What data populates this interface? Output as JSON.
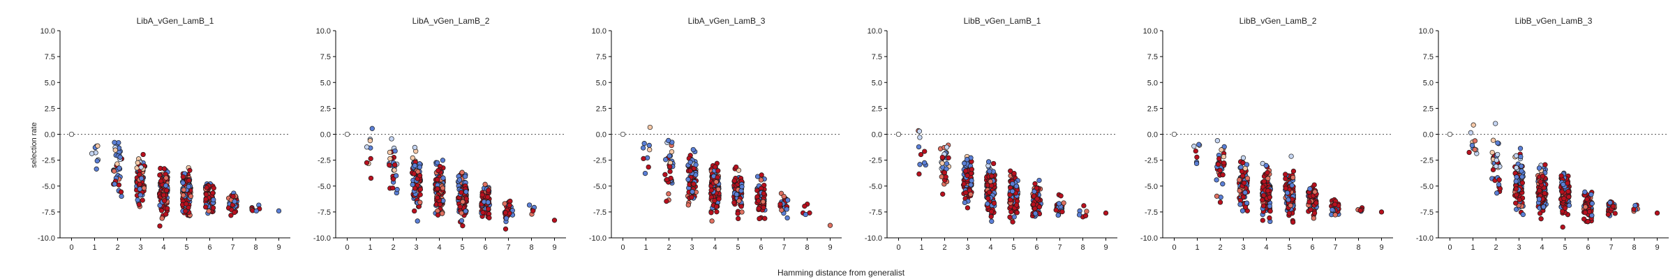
{
  "figure": {
    "xlabel": "Hamming distance from generalist",
    "ylabel": "selection rate"
  },
  "colors": {
    "low": "#c5d5f2",
    "mid_blue": "#5b7fd6",
    "deep_red": "#b8101e",
    "mid_red": "#e07060",
    "pale": "#f6c9a8"
  },
  "chart_data": [
    {
      "type": "scatter",
      "title": "LibA_vGen_LamB_1",
      "xticks": [
        "0",
        "1",
        "2",
        "3",
        "4",
        "5",
        "6",
        "7",
        "8",
        "9"
      ],
      "yticks": [
        "10.0",
        "7.5",
        "5.0",
        "2.5",
        "0.0",
        "-2.5",
        "-5.0",
        "-7.5",
        "-10.0"
      ],
      "xlim": [
        -0.5,
        9.5
      ],
      "ylim": [
        -10,
        10
      ],
      "grid": false,
      "zero_line": true,
      "groups": [
        {
          "x": 0,
          "n": 1,
          "center": 0.0,
          "spread": 0.1,
          "min": -0.1,
          "max": 0.1
        },
        {
          "x": 1,
          "n": 8,
          "center": -1.5,
          "spread": 1.5,
          "min": -4.0,
          "max": 1.8
        },
        {
          "x": 2,
          "n": 35,
          "center": -3.0,
          "spread": 2.5,
          "min": -8.5,
          "max": 1.6
        },
        {
          "x": 3,
          "n": 70,
          "center": -4.5,
          "spread": 2.0,
          "min": -8.0,
          "max": 1.5
        },
        {
          "x": 4,
          "n": 110,
          "center": -5.5,
          "spread": 1.8,
          "min": -9.0,
          "max": -0.8
        },
        {
          "x": 5,
          "n": 105,
          "center": -5.8,
          "spread": 1.6,
          "min": -8.8,
          "max": -0.8
        },
        {
          "x": 6,
          "n": 70,
          "center": -6.2,
          "spread": 1.3,
          "min": -8.8,
          "max": -2.0
        },
        {
          "x": 7,
          "n": 30,
          "center": -6.8,
          "spread": 0.9,
          "min": -8.5,
          "max": -5.0
        },
        {
          "x": 8,
          "n": 8,
          "center": -7.0,
          "spread": 0.8,
          "min": -8.0,
          "max": -5.8
        },
        {
          "x": 9,
          "n": 1,
          "center": -7.4,
          "spread": 0.1,
          "min": -7.5,
          "max": -7.3
        }
      ]
    },
    {
      "type": "scatter",
      "title": "LibA_vGen_LamB_2",
      "xticks": [
        "0",
        "1",
        "2",
        "3",
        "4",
        "5",
        "6",
        "7",
        "8",
        "9"
      ],
      "yticks": [
        "10.0",
        "7.5",
        "5.0",
        "2.5",
        "0.0",
        "-2.5",
        "-5.0",
        "-7.5",
        "-10.0"
      ],
      "xlim": [
        -0.5,
        9.5
      ],
      "ylim": [
        -10,
        10
      ],
      "grid": false,
      "zero_line": true,
      "groups": [
        {
          "x": 0,
          "n": 1,
          "center": 0.0,
          "spread": 0.1,
          "min": -0.1,
          "max": 0.1
        },
        {
          "x": 1,
          "n": 9,
          "center": -1.8,
          "spread": 1.6,
          "min": -4.5,
          "max": 1.8
        },
        {
          "x": 2,
          "n": 30,
          "center": -3.2,
          "spread": 2.4,
          "min": -8.0,
          "max": 1.6
        },
        {
          "x": 3,
          "n": 80,
          "center": -4.5,
          "spread": 2.0,
          "min": -8.5,
          "max": 1.6
        },
        {
          "x": 4,
          "n": 120,
          "center": -5.5,
          "spread": 1.8,
          "min": -9.5,
          "max": -0.8
        },
        {
          "x": 5,
          "n": 100,
          "center": -5.8,
          "spread": 1.5,
          "min": -9.0,
          "max": -1.0
        },
        {
          "x": 6,
          "n": 70,
          "center": -6.5,
          "spread": 1.3,
          "min": -9.5,
          "max": -2.5
        },
        {
          "x": 7,
          "n": 35,
          "center": -7.4,
          "spread": 0.9,
          "min": -9.5,
          "max": -5.5
        },
        {
          "x": 8,
          "n": 6,
          "center": -7.2,
          "spread": 0.5,
          "min": -7.8,
          "max": -6.8
        },
        {
          "x": 9,
          "n": 1,
          "center": -8.3,
          "spread": 0.1,
          "min": -8.4,
          "max": -8.2
        }
      ]
    },
    {
      "type": "scatter",
      "title": "LibA_vGen_LamB_3",
      "xticks": [
        "0",
        "1",
        "2",
        "3",
        "4",
        "5",
        "6",
        "7",
        "8",
        "9"
      ],
      "yticks": [
        "10.0",
        "7.5",
        "5.0",
        "2.5",
        "0.0",
        "-2.5",
        "-5.0",
        "-7.5",
        "-10.0"
      ],
      "xlim": [
        -0.5,
        9.5
      ],
      "ylim": [
        -10,
        10
      ],
      "grid": false,
      "zero_line": true,
      "groups": [
        {
          "x": 0,
          "n": 1,
          "center": 0.0,
          "spread": 0.1,
          "min": -0.1,
          "max": 0.1
        },
        {
          "x": 1,
          "n": 9,
          "center": -1.5,
          "spread": 1.6,
          "min": -4.2,
          "max": 1.8
        },
        {
          "x": 2,
          "n": 30,
          "center": -3.0,
          "spread": 2.3,
          "min": -8.0,
          "max": 1.6
        },
        {
          "x": 3,
          "n": 85,
          "center": -4.2,
          "spread": 1.9,
          "min": -8.0,
          "max": 1.6
        },
        {
          "x": 4,
          "n": 115,
          "center": -5.2,
          "spread": 1.8,
          "min": -8.5,
          "max": -0.8
        },
        {
          "x": 5,
          "n": 100,
          "center": -5.5,
          "spread": 1.5,
          "min": -8.5,
          "max": -1.0
        },
        {
          "x": 6,
          "n": 70,
          "center": -6.2,
          "spread": 1.3,
          "min": -9.0,
          "max": -2.0
        },
        {
          "x": 7,
          "n": 25,
          "center": -6.8,
          "spread": 1.0,
          "min": -8.5,
          "max": -5.0
        },
        {
          "x": 8,
          "n": 5,
          "center": -7.4,
          "spread": 0.8,
          "min": -9.0,
          "max": -6.0
        },
        {
          "x": 9,
          "n": 1,
          "center": -8.8,
          "spread": 0.1,
          "min": -8.9,
          "max": -8.7
        }
      ]
    },
    {
      "type": "scatter",
      "title": "LibB_vGen_LamB_1",
      "xticks": [
        "0",
        "1",
        "2",
        "3",
        "4",
        "5",
        "6",
        "7",
        "8",
        "9"
      ],
      "yticks": [
        "10.0",
        "7.5",
        "5.0",
        "2.5",
        "0.0",
        "-2.5",
        "-5.0",
        "-7.5",
        "-10.0"
      ],
      "xlim": [
        -0.5,
        9.5
      ],
      "ylim": [
        -10,
        10
      ],
      "grid": false,
      "zero_line": true,
      "groups": [
        {
          "x": 0,
          "n": 1,
          "center": 0.0,
          "spread": 0.1,
          "min": -0.1,
          "max": 0.1
        },
        {
          "x": 1,
          "n": 10,
          "center": -1.5,
          "spread": 1.6,
          "min": -4.3,
          "max": 1.3
        },
        {
          "x": 2,
          "n": 30,
          "center": -3.0,
          "spread": 2.0,
          "min": -6.5,
          "max": 1.2
        },
        {
          "x": 3,
          "n": 75,
          "center": -4.5,
          "spread": 1.9,
          "min": -8.0,
          "max": 1.3
        },
        {
          "x": 4,
          "n": 115,
          "center": -5.5,
          "spread": 1.7,
          "min": -8.5,
          "max": -0.5
        },
        {
          "x": 5,
          "n": 95,
          "center": -5.8,
          "spread": 1.5,
          "min": -8.5,
          "max": -0.8
        },
        {
          "x": 6,
          "n": 60,
          "center": -6.5,
          "spread": 1.2,
          "min": -9.0,
          "max": -2.5
        },
        {
          "x": 7,
          "n": 25,
          "center": -7.0,
          "spread": 0.7,
          "min": -8.2,
          "max": -5.2
        },
        {
          "x": 8,
          "n": 6,
          "center": -7.5,
          "spread": 0.4,
          "min": -8.0,
          "max": -6.8
        },
        {
          "x": 9,
          "n": 1,
          "center": -7.6,
          "spread": 0.1,
          "min": -7.7,
          "max": -7.5
        }
      ]
    },
    {
      "type": "scatter",
      "title": "LibB_vGen_LamB_2",
      "xticks": [
        "0",
        "1",
        "2",
        "3",
        "4",
        "5",
        "6",
        "7",
        "8",
        "9"
      ],
      "yticks": [
        "10.0",
        "7.5",
        "5.0",
        "2.5",
        "0.0",
        "-2.5",
        "-5.0",
        "-7.5",
        "-10.0"
      ],
      "xlim": [
        -0.5,
        9.5
      ],
      "ylim": [
        -10,
        10
      ],
      "grid": false,
      "zero_line": true,
      "groups": [
        {
          "x": 0,
          "n": 1,
          "center": 0.0,
          "spread": 0.1,
          "min": -0.1,
          "max": 0.1
        },
        {
          "x": 1,
          "n": 7,
          "center": -1.5,
          "spread": 1.6,
          "min": -4.3,
          "max": 1.3
        },
        {
          "x": 2,
          "n": 30,
          "center": -3.2,
          "spread": 2.2,
          "min": -7.8,
          "max": 1.2
        },
        {
          "x": 3,
          "n": 90,
          "center": -4.8,
          "spread": 2.0,
          "min": -8.5,
          "max": 1.2
        },
        {
          "x": 4,
          "n": 120,
          "center": -5.5,
          "spread": 1.8,
          "min": -8.5,
          "max": -0.5
        },
        {
          "x": 5,
          "n": 105,
          "center": -5.8,
          "spread": 1.6,
          "min": -8.8,
          "max": -1.0
        },
        {
          "x": 6,
          "n": 60,
          "center": -6.3,
          "spread": 1.2,
          "min": -8.8,
          "max": -2.5
        },
        {
          "x": 7,
          "n": 25,
          "center": -7.0,
          "spread": 0.7,
          "min": -8.5,
          "max": -5.5
        },
        {
          "x": 8,
          "n": 5,
          "center": -7.3,
          "spread": 0.2,
          "min": -7.6,
          "max": -7.0
        },
        {
          "x": 9,
          "n": 1,
          "center": -7.5,
          "spread": 0.1,
          "min": -7.6,
          "max": -7.4
        }
      ]
    },
    {
      "type": "scatter",
      "title": "LibB_vGen_LamB_3",
      "xticks": [
        "0",
        "1",
        "2",
        "3",
        "4",
        "5",
        "6",
        "7",
        "8",
        "9"
      ],
      "yticks": [
        "10.0",
        "7.5",
        "5.0",
        "2.5",
        "0.0",
        "-2.5",
        "-5.0",
        "-7.5",
        "-10.0"
      ],
      "xlim": [
        -0.5,
        9.5
      ],
      "ylim": [
        -10,
        10
      ],
      "grid": false,
      "zero_line": true,
      "groups": [
        {
          "x": 0,
          "n": 1,
          "center": 0.0,
          "spread": 0.1,
          "min": -0.1,
          "max": 0.1
        },
        {
          "x": 1,
          "n": 10,
          "center": -1.5,
          "spread": 1.6,
          "min": -4.5,
          "max": 1.3
        },
        {
          "x": 2,
          "n": 35,
          "center": -3.0,
          "spread": 2.3,
          "min": -7.0,
          "max": 1.2
        },
        {
          "x": 3,
          "n": 90,
          "center": -4.5,
          "spread": 2.1,
          "min": -9.0,
          "max": 1.3
        },
        {
          "x": 4,
          "n": 120,
          "center": -5.5,
          "spread": 1.8,
          "min": -8.8,
          "max": -0.6
        },
        {
          "x": 5,
          "n": 105,
          "center": -6.0,
          "spread": 1.6,
          "min": -9.0,
          "max": -1.0
        },
        {
          "x": 6,
          "n": 60,
          "center": -6.8,
          "spread": 1.2,
          "min": -9.5,
          "max": -3.0
        },
        {
          "x": 7,
          "n": 25,
          "center": -7.0,
          "spread": 0.7,
          "min": -8.2,
          "max": -5.5
        },
        {
          "x": 8,
          "n": 6,
          "center": -7.3,
          "spread": 0.4,
          "min": -8.0,
          "max": -6.8
        },
        {
          "x": 9,
          "n": 1,
          "center": -7.6,
          "spread": 0.1,
          "min": -7.7,
          "max": -7.5
        }
      ]
    }
  ]
}
